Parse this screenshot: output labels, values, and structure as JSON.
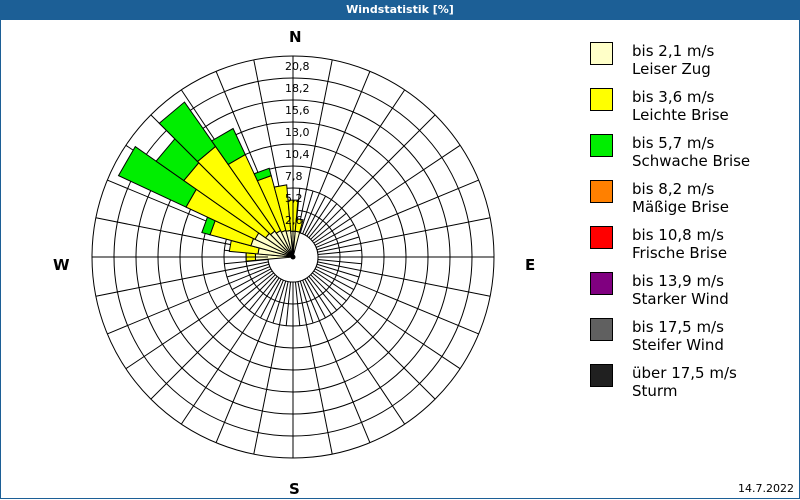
{
  "title": "Windstatistik [%]",
  "compass": {
    "n": "N",
    "e": "E",
    "s": "S",
    "w": "W"
  },
  "date": "14.7.2022",
  "ring_labels": [
    "2,6",
    "5,2",
    "7,8",
    "10,4",
    "13,0",
    "15,6",
    "18,2",
    "20,8"
  ],
  "legend": [
    {
      "range": "bis 2,1 m/s",
      "name": "Leiser Zug",
      "color": "#ffffc8"
    },
    {
      "range": "bis 3,6 m/s",
      "name": "Leichte Brise",
      "color": "#ffff00"
    },
    {
      "range": "bis 5,7 m/s",
      "name": "Schwache Brise",
      "color": "#00ee00"
    },
    {
      "range": "bis 8,2 m/s",
      "name": "Mäßige Brise",
      "color": "#ff8000"
    },
    {
      "range": "bis 10,8 m/s",
      "name": "Frische Brise",
      "color": "#ff0000"
    },
    {
      "range": "bis 13,9 m/s",
      "name": "Starker Wind",
      "color": "#800080"
    },
    {
      "range": "bis 17,5 m/s",
      "name": "Steifer Wind",
      "color": "#606060"
    },
    {
      "range": "über 17,5 m/s",
      "name": "Sturm",
      "color": "#202020"
    }
  ],
  "chart_data": {
    "type": "wind-rose",
    "title": "Windstatistik [%]",
    "unit": "%",
    "rmax": 20.8,
    "ring_ticks": [
      2.6,
      5.2,
      7.8,
      10.4,
      13.0,
      15.6,
      18.2,
      20.8
    ],
    "sector_width_deg": 10,
    "speed_classes": [
      "bis 2,1 m/s",
      "bis 3,6 m/s",
      "bis 5,7 m/s",
      "bis 8,2 m/s",
      "bis 10,8 m/s",
      "bis 13,9 m/s",
      "bis 17,5 m/s",
      "über 17,5 m/s"
    ],
    "sectors": [
      {
        "direction": 270,
        "cumulative": [
          1.5,
          2.6,
          2.6
        ]
      },
      {
        "direction": 280,
        "cumulative": [
          1.2,
          4.6,
          4.6
        ]
      },
      {
        "direction": 290,
        "cumulative": [
          2.2,
          7.2,
          8.2
        ]
      },
      {
        "direction": 300,
        "cumulative": [
          2.0,
          11.0,
          19.8
        ]
      },
      {
        "direction": 310,
        "cumulative": [
          1.0,
          12.8,
          16.8
        ]
      },
      {
        "direction": 320,
        "cumulative": [
          0.8,
          13.0,
          19.4
        ]
      },
      {
        "direction": 330,
        "cumulative": [
          0.5,
          10.4,
          13.8
        ]
      },
      {
        "direction": 340,
        "cumulative": [
          0.3,
          7.0,
          7.9
        ]
      },
      {
        "direction": 350,
        "cumulative": [
          0.2,
          5.6,
          5.6
        ]
      },
      {
        "direction": 0,
        "cumulative": [
          0.1,
          3.8,
          3.8
        ]
      },
      {
        "direction": 10,
        "cumulative": [
          0.1,
          1.6,
          1.6
        ]
      }
    ]
  }
}
